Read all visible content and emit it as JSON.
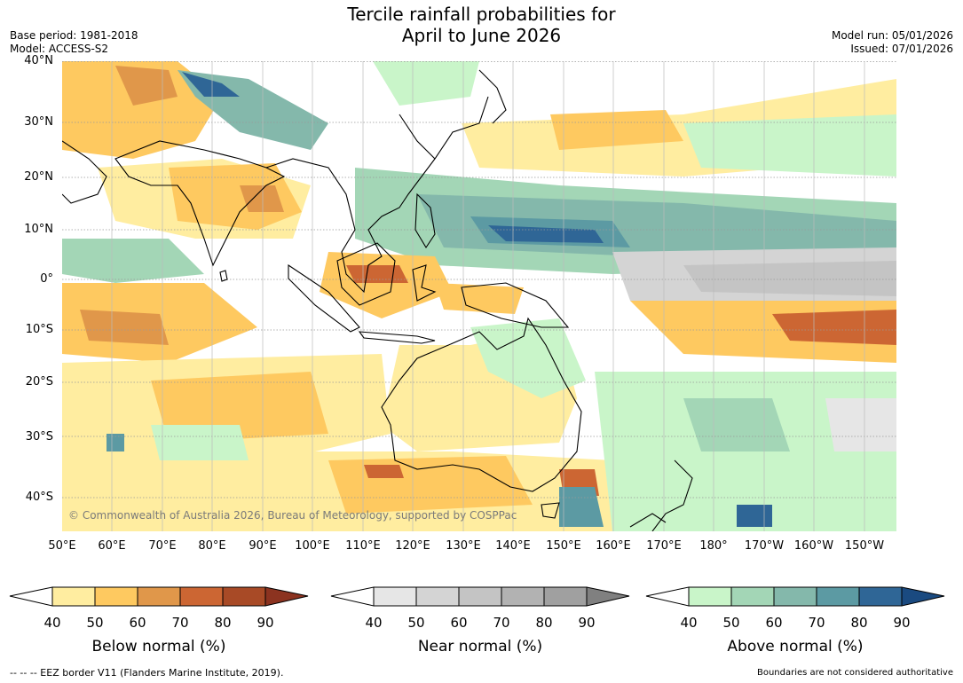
{
  "title_line1": "Tercile rainfall probabilities for",
  "title_line2": "April to June 2026",
  "base_period": "Base period: 1981-2018",
  "model": "Model: ACCESS-S2",
  "model_run": "Model run: 05/01/2026",
  "issued": "Issued: 07/01/2026",
  "lat_labels": [
    "40°N",
    "30°N",
    "20°N",
    "10°N",
    "0°",
    "10°S",
    "20°S",
    "30°S",
    "40°S"
  ],
  "lon_labels": [
    "50°E",
    "60°E",
    "70°E",
    "80°E",
    "90°E",
    "100°E",
    "110°E",
    "120°E",
    "130°E",
    "140°E",
    "150°E",
    "160°E",
    "170°E",
    "180°",
    "170°W",
    "160°W",
    "150°W"
  ],
  "copyright": "© Commonwealth of Australia 2026, Bureau of Meteorology, supported by COSPPac",
  "legends": [
    {
      "title": "Below normal (%)",
      "ticks": [
        "40",
        "50",
        "60",
        "70",
        "80",
        "90"
      ],
      "colors": [
        "#ffeda0",
        "#fec960",
        "#e0974a",
        "#cc6633",
        "#a84a26",
        "#8c3320"
      ]
    },
    {
      "title": "Near normal (%)",
      "ticks": [
        "40",
        "50",
        "60",
        "70",
        "80",
        "90"
      ],
      "colors": [
        "#e6e6e6",
        "#d4d4d4",
        "#c4c4c4",
        "#b2b2b2",
        "#a0a0a0",
        "#808080"
      ]
    },
    {
      "title": "Above normal (%)",
      "ticks": [
        "40",
        "50",
        "60",
        "70",
        "80",
        "90"
      ],
      "colors": [
        "#c9f5c9",
        "#a3d6b6",
        "#84b8ab",
        "#5c9aa3",
        "#2f6696",
        "#1a4a80"
      ]
    }
  ],
  "footer_left": "--  --  -- EEZ border V11 (Flanders Marine Institute, 2019).",
  "footer_right": "Boundaries are not considered authoritative"
}
